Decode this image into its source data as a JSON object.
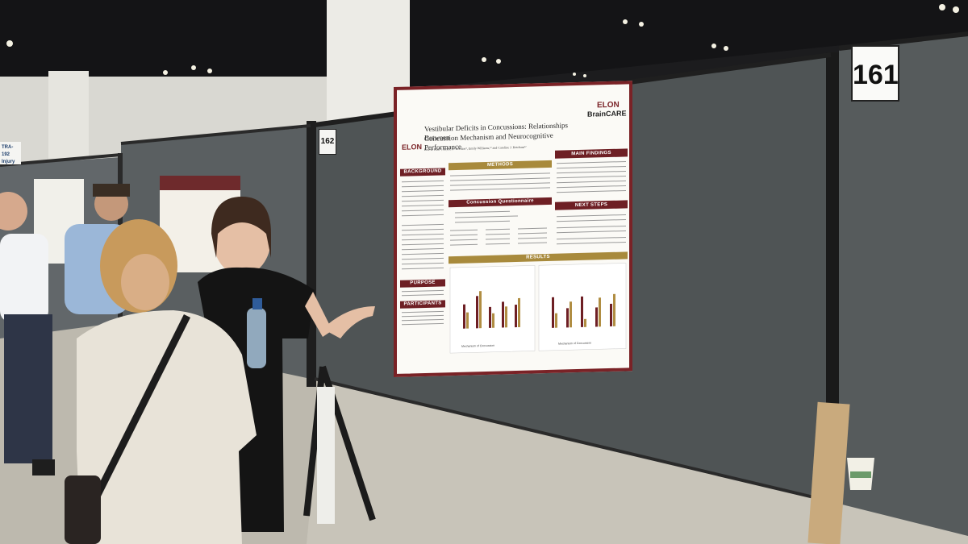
{
  "booths": {
    "left_number": "162",
    "right_number": "161"
  },
  "poster": {
    "title_line1": "Vestibular Deficits in Concussions: Relationships Between",
    "title_line2": "Concussion Mechanism and Neurocognitive Performance",
    "authors": "Eric E. Hall¹², Bryce A. Kreitzer¹, Emily Williams,¹² and Caroline J. Ketcham¹²",
    "left_logo": "ELON",
    "right_logo_line1": "ELON",
    "right_logo_line2": "BrainCARE",
    "sections": {
      "background": "BACKGROUND",
      "methods": "METHODS",
      "main_findings": "MAIN FINDINGS",
      "concussion_questionnaire": "Concussion Questionnaire",
      "next_steps": "NEXT STEPS",
      "purpose": "PURPOSE",
      "participants": "PARTICIPANTS",
      "results": "RESULTS"
    },
    "chart_axis_left": "Mechanism of Concussion",
    "chart_axis_right": "Mechanism of Concussion"
  },
  "left_sign": {
    "line1": "TRA-192",
    "line2": "Injury"
  },
  "colors": {
    "maroon": "#6e1f24",
    "gold": "#a88a3c",
    "panel_gray": "#4d5152",
    "floor": "#b9b6ab"
  }
}
